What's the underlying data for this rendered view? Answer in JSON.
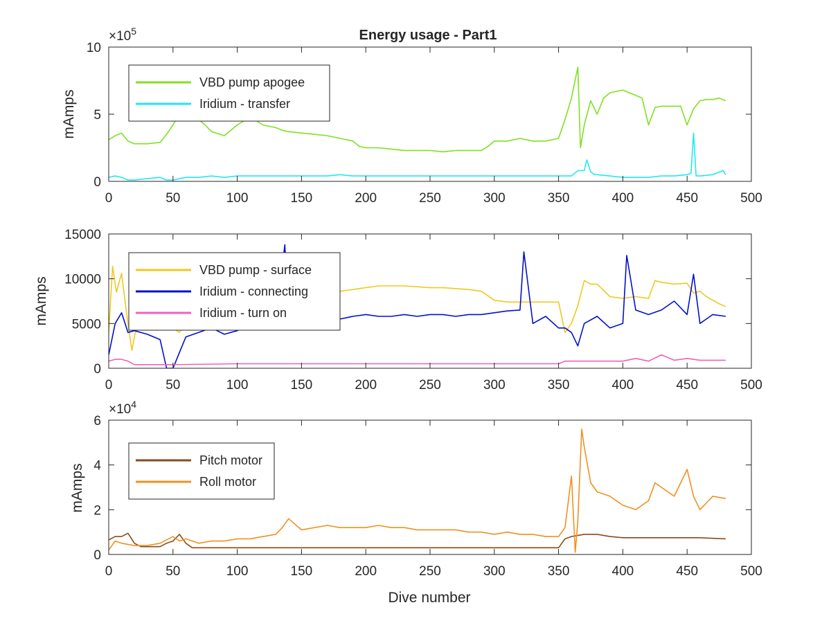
{
  "figure": {
    "title": "Energy usage - Part1",
    "xlabel": "Dive number"
  },
  "chart_data": [
    {
      "type": "line",
      "title": "Energy usage - Part1",
      "xlabel": "",
      "ylabel": "mAmps",
      "exponent_label": "×10",
      "exponent": "5",
      "xlim": [
        0,
        500
      ],
      "ylim": [
        0,
        10
      ],
      "xticks": [
        "0",
        "50",
        "100",
        "150",
        "200",
        "250",
        "300",
        "350",
        "400",
        "450",
        "500"
      ],
      "yticks": [
        "0",
        "5",
        "10"
      ],
      "legend_position": "top-left",
      "series": [
        {
          "name": "VBD pump apogee",
          "color": "#80e020",
          "x": [
            0,
            5,
            10,
            15,
            20,
            30,
            40,
            45,
            50,
            55,
            60,
            70,
            75,
            80,
            90,
            100,
            110,
            120,
            130,
            135,
            140,
            150,
            160,
            170,
            180,
            190,
            195,
            200,
            210,
            220,
            230,
            240,
            250,
            260,
            270,
            280,
            290,
            295,
            300,
            310,
            320,
            330,
            340,
            350,
            355,
            360,
            365,
            367,
            370,
            375,
            380,
            385,
            390,
            400,
            405,
            410,
            415,
            420,
            425,
            430,
            440,
            445,
            450,
            455,
            460,
            465,
            470,
            475,
            480
          ],
          "y": [
            3.1,
            3.4,
            3.6,
            3.0,
            2.8,
            2.8,
            2.9,
            3.5,
            4.2,
            5.0,
            4.9,
            4.6,
            4.2,
            3.7,
            3.4,
            4.2,
            4.8,
            4.2,
            4.0,
            3.8,
            3.7,
            3.6,
            3.5,
            3.4,
            3.2,
            3.0,
            2.6,
            2.5,
            2.5,
            2.4,
            2.3,
            2.3,
            2.3,
            2.2,
            2.3,
            2.3,
            2.3,
            2.6,
            3.0,
            3.0,
            3.2,
            3.0,
            3.0,
            3.2,
            4.6,
            6.2,
            8.5,
            2.5,
            4.2,
            6.0,
            5.0,
            6.2,
            6.6,
            6.8,
            6.6,
            6.4,
            6.2,
            4.2,
            5.5,
            5.6,
            5.6,
            5.6,
            4.2,
            5.4,
            6.0,
            6.1,
            6.1,
            6.2,
            6.0
          ]
        },
        {
          "name": "Iridium - transfer",
          "color": "#20e8f0",
          "x": [
            0,
            5,
            10,
            15,
            20,
            30,
            40,
            45,
            50,
            60,
            70,
            80,
            90,
            100,
            110,
            120,
            130,
            140,
            150,
            160,
            170,
            180,
            190,
            200,
            210,
            220,
            230,
            240,
            250,
            260,
            270,
            280,
            290,
            300,
            310,
            320,
            330,
            340,
            350,
            360,
            365,
            370,
            372,
            375,
            378,
            380,
            390,
            400,
            410,
            420,
            430,
            440,
            450,
            453,
            455,
            457,
            460,
            470,
            478,
            480
          ],
          "y": [
            0.3,
            0.4,
            0.3,
            0.1,
            0.1,
            0.2,
            0.3,
            0.1,
            0.1,
            0.3,
            0.3,
            0.4,
            0.3,
            0.4,
            0.4,
            0.4,
            0.4,
            0.4,
            0.4,
            0.4,
            0.4,
            0.5,
            0.4,
            0.4,
            0.4,
            0.4,
            0.4,
            0.4,
            0.4,
            0.4,
            0.4,
            0.4,
            0.4,
            0.4,
            0.4,
            0.4,
            0.4,
            0.4,
            0.4,
            0.4,
            0.8,
            0.8,
            1.6,
            0.7,
            0.5,
            0.5,
            0.4,
            0.3,
            0.3,
            0.3,
            0.4,
            0.4,
            0.5,
            0.6,
            3.6,
            0.4,
            0.4,
            0.5,
            0.8,
            0.5
          ]
        }
      ]
    },
    {
      "type": "line",
      "title": "",
      "xlabel": "",
      "ylabel": "mAmps",
      "xlim": [
        0,
        500
      ],
      "ylim": [
        0,
        15000
      ],
      "xticks": [
        "0",
        "50",
        "100",
        "150",
        "200",
        "250",
        "300",
        "350",
        "400",
        "450",
        "500"
      ],
      "yticks": [
        "0",
        "5000",
        "10000",
        "15000"
      ],
      "legend_position": "top-left",
      "series": [
        {
          "name": "VBD pump - surface",
          "color": "#f0c820",
          "x": [
            0,
            3,
            6,
            10,
            14,
            18,
            22,
            30,
            40,
            45,
            50,
            55,
            60,
            70,
            80,
            90,
            100,
            110,
            120,
            130,
            140,
            150,
            160,
            170,
            180,
            190,
            200,
            210,
            220,
            230,
            240,
            250,
            260,
            270,
            280,
            290,
            300,
            310,
            320,
            330,
            340,
            350,
            355,
            360,
            365,
            370,
            375,
            380,
            390,
            400,
            410,
            420,
            425,
            430,
            440,
            450,
            455,
            460,
            465,
            470,
            475,
            480
          ],
          "y": [
            4000,
            11400,
            8500,
            10600,
            6000,
            2000,
            5000,
            4800,
            4500,
            4300,
            4500,
            4000,
            5000,
            4800,
            5200,
            4600,
            6000,
            6500,
            7200,
            7000,
            7400,
            7600,
            8000,
            8200,
            8600,
            8800,
            9000,
            9200,
            9200,
            9200,
            9100,
            9000,
            9000,
            8900,
            8800,
            8600,
            7600,
            7400,
            7400,
            7400,
            7400,
            7400,
            4000,
            5000,
            7000,
            9800,
            9400,
            9400,
            8000,
            7800,
            8000,
            7800,
            9800,
            9600,
            9400,
            9500,
            8400,
            8600,
            8000,
            7600,
            7200,
            6900
          ]
        },
        {
          "name": "Iridium - connecting",
          "color": "#0010c8",
          "x": [
            0,
            5,
            10,
            15,
            20,
            30,
            40,
            45,
            50,
            60,
            70,
            80,
            90,
            100,
            110,
            120,
            130,
            137,
            140,
            150,
            160,
            170,
            180,
            190,
            200,
            210,
            220,
            230,
            240,
            250,
            260,
            270,
            280,
            290,
            300,
            310,
            320,
            323,
            330,
            340,
            350,
            355,
            360,
            365,
            370,
            380,
            390,
            400,
            403,
            410,
            420,
            430,
            440,
            450,
            455,
            460,
            470,
            480
          ],
          "y": [
            1500,
            5000,
            6200,
            4000,
            4200,
            3800,
            3200,
            0,
            0,
            3500,
            4000,
            4500,
            3800,
            4200,
            5000,
            4600,
            4800,
            13800,
            5500,
            5500,
            5800,
            6000,
            5500,
            5800,
            6000,
            5800,
            5800,
            6000,
            5800,
            6000,
            6000,
            5800,
            6000,
            6000,
            6200,
            6400,
            6500,
            13000,
            5000,
            5800,
            4500,
            4500,
            4000,
            2500,
            5000,
            5800,
            4500,
            5000,
            12600,
            6500,
            6000,
            6500,
            7500,
            6000,
            10500,
            5000,
            6000,
            5800
          ]
        },
        {
          "name": "Iridium - turn on",
          "color": "#f060c0",
          "x": [
            0,
            5,
            10,
            15,
            20,
            50,
            100,
            150,
            200,
            250,
            300,
            350,
            355,
            360,
            370,
            380,
            390,
            400,
            410,
            420,
            430,
            440,
            450,
            460,
            470,
            480
          ],
          "y": [
            800,
            1000,
            1000,
            800,
            400,
            400,
            500,
            500,
            500,
            500,
            500,
            500,
            800,
            800,
            800,
            800,
            800,
            800,
            1100,
            800,
            1500,
            900,
            1100,
            900,
            900,
            900
          ]
        }
      ]
    },
    {
      "type": "line",
      "title": "",
      "xlabel": "Dive number",
      "ylabel": "mAmps",
      "exponent_label": "×10",
      "exponent": "4",
      "xlim": [
        0,
        500
      ],
      "ylim": [
        0,
        6
      ],
      "xticks": [
        "0",
        "50",
        "100",
        "150",
        "200",
        "250",
        "300",
        "350",
        "400",
        "450",
        "500"
      ],
      "yticks": [
        "0",
        "2",
        "4",
        "6"
      ],
      "legend_position": "top-left",
      "series": [
        {
          "name": "Pitch motor",
          "color": "#8a4a1a",
          "x": [
            0,
            5,
            10,
            15,
            20,
            25,
            40,
            45,
            50,
            55,
            60,
            65,
            100,
            150,
            200,
            250,
            300,
            350,
            355,
            360,
            370,
            380,
            390,
            400,
            420,
            440,
            460,
            480
          ],
          "y": [
            0.65,
            0.8,
            0.8,
            0.95,
            0.5,
            0.35,
            0.35,
            0.5,
            0.6,
            0.9,
            0.5,
            0.3,
            0.3,
            0.3,
            0.3,
            0.3,
            0.3,
            0.3,
            0.7,
            0.8,
            0.9,
            0.9,
            0.8,
            0.75,
            0.75,
            0.75,
            0.75,
            0.7
          ]
        },
        {
          "name": "Roll motor",
          "color": "#f09020",
          "x": [
            0,
            5,
            10,
            20,
            30,
            40,
            50,
            55,
            60,
            70,
            80,
            90,
            100,
            110,
            120,
            130,
            135,
            140,
            150,
            160,
            170,
            180,
            190,
            200,
            210,
            220,
            230,
            240,
            250,
            260,
            270,
            280,
            290,
            300,
            310,
            320,
            330,
            340,
            350,
            355,
            360,
            363,
            365,
            368,
            370,
            375,
            380,
            390,
            400,
            410,
            420,
            425,
            430,
            440,
            450,
            455,
            460,
            470,
            480
          ],
          "y": [
            0.2,
            0.6,
            0.5,
            0.4,
            0.4,
            0.5,
            0.8,
            0.6,
            0.7,
            0.5,
            0.6,
            0.6,
            0.7,
            0.7,
            0.8,
            0.9,
            1.2,
            1.6,
            1.1,
            1.2,
            1.3,
            1.2,
            1.2,
            1.2,
            1.3,
            1.2,
            1.2,
            1.1,
            1.1,
            1.1,
            1.1,
            1.0,
            1.0,
            0.9,
            1.0,
            0.9,
            0.9,
            0.8,
            0.8,
            1.2,
            3.5,
            0.1,
            1.5,
            5.6,
            4.8,
            3.2,
            2.8,
            2.6,
            2.2,
            2.0,
            2.4,
            3.2,
            3.0,
            2.6,
            3.8,
            2.6,
            2.0,
            2.6,
            2.5
          ]
        }
      ]
    }
  ]
}
